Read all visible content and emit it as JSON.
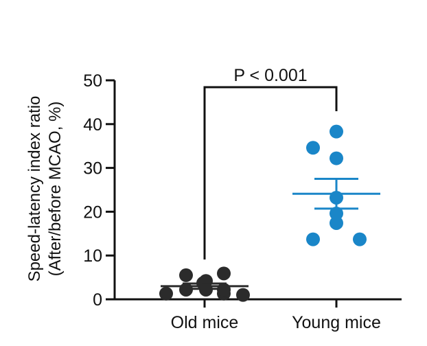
{
  "chart_data": {
    "type": "scatter",
    "title": "",
    "xlabel": "",
    "ylabel": [
      "Speed-latency index ratio",
      "(After/before MCAO, %)"
    ],
    "ylim": [
      0,
      50
    ],
    "yticks": [
      "0",
      "10",
      "20",
      "30",
      "40",
      "50"
    ],
    "categories": [
      "Old mice",
      "Young mice"
    ],
    "grid": false,
    "legend": "none",
    "annotation": "P < 0.001",
    "series": [
      {
        "category": "Old mice",
        "color": "#2b2b2b",
        "points": [
          1.3,
          2.2,
          5.5,
          3.7,
          4.2,
          2.2,
          1.3,
          5.9,
          2.2,
          1.0
        ],
        "mean": 3.0,
        "sem": 0.6
      },
      {
        "category": "Young mice",
        "color": "#1a86c8",
        "points": [
          13.7,
          34.6,
          38.3,
          32.2,
          23.2,
          19.6,
          17.4,
          13.7
        ],
        "mean": 24.1,
        "sem": 3.4
      }
    ]
  }
}
